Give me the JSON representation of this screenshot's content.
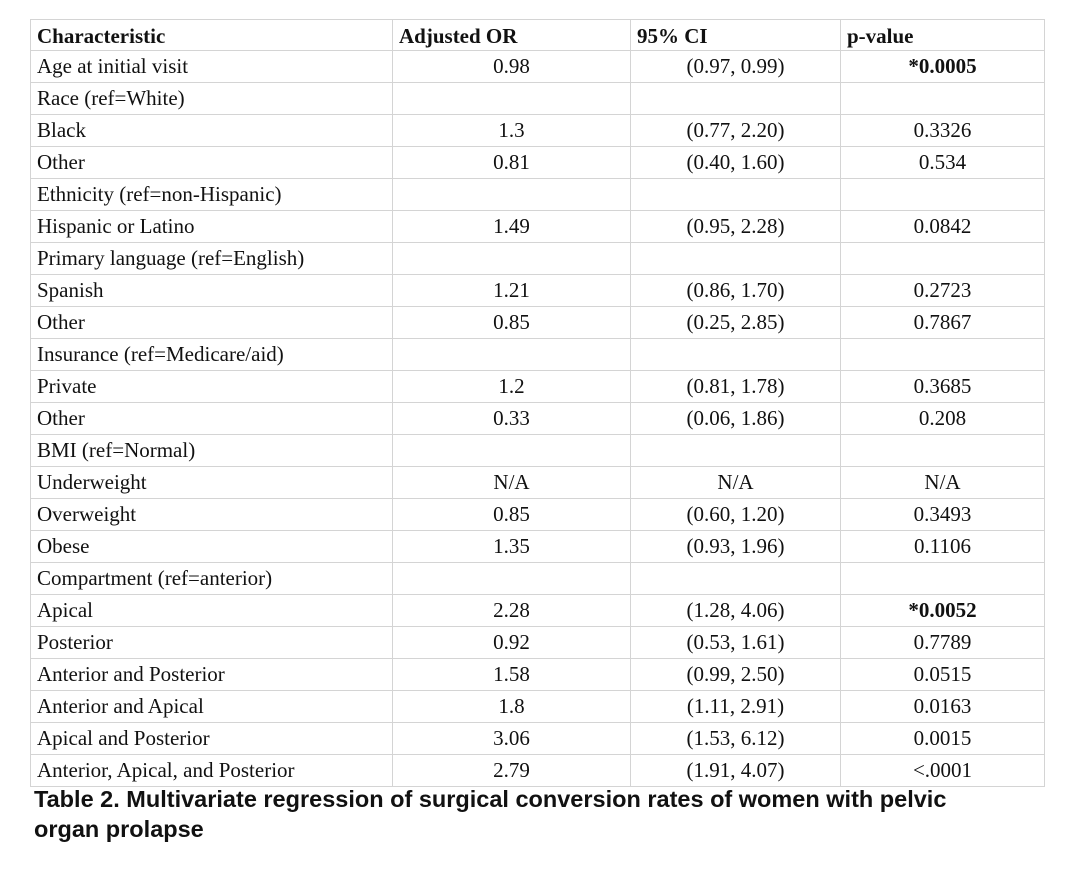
{
  "table": {
    "headers": [
      "Characteristic",
      "Adjusted OR",
      "95% CI",
      "p-value"
    ],
    "rows": [
      {
        "label": "Age at initial visit",
        "or": "0.98",
        "ci": "(0.97, 0.99)",
        "p": "*0.0005",
        "significant": true
      },
      {
        "label": "Race (ref=White)",
        "or": "",
        "ci": "",
        "p": "",
        "significant": false
      },
      {
        "label": "Black",
        "or": "1.3",
        "ci": "(0.77, 2.20)",
        "p": "0.3326",
        "significant": false
      },
      {
        "label": "Other",
        "or": "0.81",
        "ci": "(0.40, 1.60)",
        "p": "0.534",
        "significant": false
      },
      {
        "label": "Ethnicity (ref=non-Hispanic)",
        "or": "",
        "ci": "",
        "p": "",
        "significant": false
      },
      {
        "label": "Hispanic or Latino",
        "or": "1.49",
        "ci": "(0.95, 2.28)",
        "p": "0.0842",
        "significant": false
      },
      {
        "label": "Primary language (ref=English)",
        "or": "",
        "ci": "",
        "p": "",
        "significant": false
      },
      {
        "label": "Spanish",
        "or": "1.21",
        "ci": "(0.86, 1.70)",
        "p": "0.2723",
        "significant": false
      },
      {
        "label": "Other",
        "or": "0.85",
        "ci": "(0.25, 2.85)",
        "p": "0.7867",
        "significant": false
      },
      {
        "label": "Insurance (ref=Medicare/aid)",
        "or": "",
        "ci": "",
        "p": "",
        "significant": false
      },
      {
        "label": "Private",
        "or": "1.2",
        "ci": "(0.81, 1.78)",
        "p": "0.3685",
        "significant": false
      },
      {
        "label": "Other",
        "or": "0.33",
        "ci": "(0.06, 1.86)",
        "p": "0.208",
        "significant": false
      },
      {
        "label": "BMI (ref=Normal)",
        "or": "",
        "ci": "",
        "p": "",
        "significant": false
      },
      {
        "label": "Underweight",
        "or": "N/A",
        "ci": "N/A",
        "p": "N/A",
        "significant": false
      },
      {
        "label": "Overweight",
        "or": "0.85",
        "ci": "(0.60, 1.20)",
        "p": "0.3493",
        "significant": false
      },
      {
        "label": "Obese",
        "or": "1.35",
        "ci": "(0.93, 1.96)",
        "p": "0.1106",
        "significant": false
      },
      {
        "label": "Compartment (ref=anterior)",
        "or": "",
        "ci": "",
        "p": "",
        "significant": false
      },
      {
        "label": "Apical",
        "or": "2.28",
        "ci": "(1.28, 4.06)",
        "p": "*0.0052",
        "significant": true
      },
      {
        "label": "Posterior",
        "or": "0.92",
        "ci": "(0.53, 1.61)",
        "p": "0.7789",
        "significant": false
      },
      {
        "label": "Anterior and Posterior",
        "or": "1.58",
        "ci": "(0.99, 2.50)",
        "p": "0.0515",
        "significant": false
      },
      {
        "label": "Anterior and Apical",
        "or": "1.8",
        "ci": "(1.11, 2.91)",
        "p": "0.0163",
        "significant": false
      },
      {
        "label": "Apical and Posterior",
        "or": "3.06",
        "ci": "(1.53, 6.12)",
        "p": "0.0015",
        "significant": false
      },
      {
        "label": "Anterior, Apical, and Posterior",
        "or": "2.79",
        "ci": "(1.91, 4.07)",
        "p": "<.0001",
        "significant": false
      }
    ]
  },
  "caption": {
    "line1": "Table 2. Multivariate regression of surgical conversion rates of women with pelvic",
    "line2": "organ prolapse"
  }
}
